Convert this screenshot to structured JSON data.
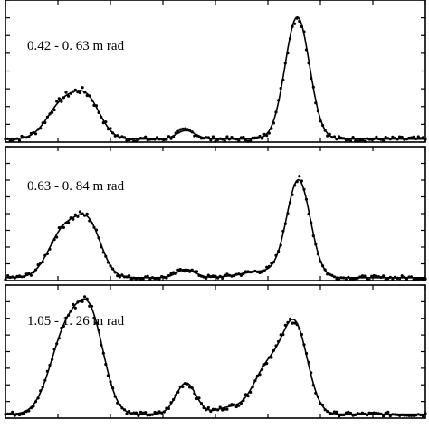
{
  "chart_data": {
    "type": "line",
    "title": "",
    "xlabel": "",
    "ylabel": "",
    "x_range": [
      0,
      100
    ],
    "y_range": [
      0,
      1
    ],
    "panels": [
      {
        "label": "0.42 - 0. 63 m rad",
        "peaks": [
          {
            "center": 13.5,
            "width": 3.6,
            "height": 0.28
          },
          {
            "center": 19.5,
            "width": 3.2,
            "height": 0.3
          },
          {
            "center": 43.0,
            "width": 2.2,
            "height": 0.07
          },
          {
            "center": 69.5,
            "width": 2.9,
            "height": 1.0
          }
        ],
        "baseline": 0.01
      },
      {
        "label": "0.63 - 0. 84 m rad",
        "peaks": [
          {
            "center": 14.0,
            "width": 3.6,
            "height": 0.45
          },
          {
            "center": 20.0,
            "width": 3.0,
            "height": 0.45
          },
          {
            "center": 43.0,
            "width": 2.2,
            "height": 0.08
          },
          {
            "center": 61.0,
            "width": 5.0,
            "height": 0.06
          },
          {
            "center": 69.8,
            "width": 2.8,
            "height": 0.92
          }
        ],
        "baseline": 0.01
      },
      {
        "label": "1.05 - 1. 26 m rad",
        "peaks": [
          {
            "center": 14.5,
            "width": 3.8,
            "height": 0.78
          },
          {
            "center": 20.5,
            "width": 3.2,
            "height": 0.8
          },
          {
            "center": 43.0,
            "width": 2.4,
            "height": 0.3
          },
          {
            "center": 53.0,
            "width": 3.0,
            "height": 0.06
          },
          {
            "center": 62.5,
            "width": 3.5,
            "height": 0.45
          },
          {
            "center": 69.0,
            "width": 3.0,
            "height": 0.82
          }
        ],
        "baseline": 0.02
      }
    ],
    "grid": false,
    "legend": "none"
  }
}
